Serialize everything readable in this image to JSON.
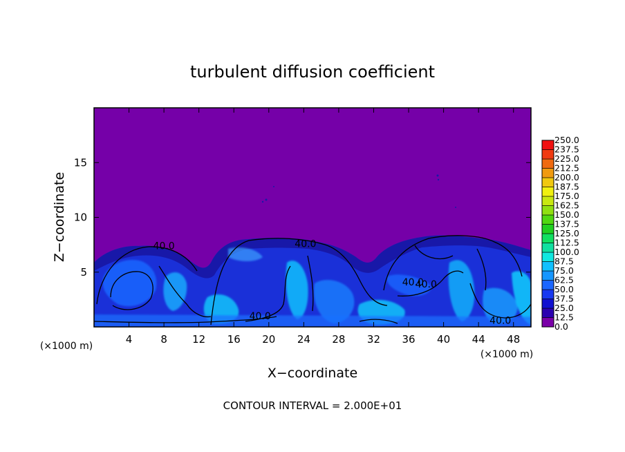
{
  "chart_data": {
    "type": "heatmap",
    "title": "turbulent diffusion coefficient",
    "xlabel": "X−coordinate",
    "ylabel": "Z−coordinate",
    "x_unit_left": "(×1000 m)",
    "x_unit_right": "(×1000 m)",
    "xlim": [
      0,
      50
    ],
    "ylim": [
      0,
      20
    ],
    "xticks": [
      4,
      8,
      12,
      16,
      20,
      24,
      28,
      32,
      36,
      40,
      44,
      48
    ],
    "yticks": [
      5,
      10,
      15
    ],
    "footer": "CONTOUR INTERVAL = 2.000E+01",
    "contour_interval": 20.0,
    "grid": false,
    "colorbar": {
      "placement": "right",
      "levels": [
        "0.0",
        "12.5",
        "25.0",
        "37.5",
        "50.0",
        "62.5",
        "75.0",
        "87.5",
        "100.0",
        "112.5",
        "125.0",
        "137.5",
        "150.0",
        "162.5",
        "175.0",
        "187.5",
        "200.0",
        "212.5",
        "225.0",
        "237.5",
        "250.0"
      ],
      "colors": [
        "#7a00a8",
        "#2a00b0",
        "#1010d0",
        "#1838f0",
        "#1a66ff",
        "#1696ff",
        "#10c0ff",
        "#10e8e0",
        "#10e0a0",
        "#10e060",
        "#20d020",
        "#50d810",
        "#90e010",
        "#c8e810",
        "#f0f010",
        "#f0c810",
        "#f09a10",
        "#f06a10",
        "#f03a10",
        "#f01010",
        "#f08080"
      ]
    },
    "contour_labels": [
      {
        "text": "40.0",
        "x": 8.0,
        "z": 7.4
      },
      {
        "text": "40.0",
        "x": 24.2,
        "z": 7.6
      },
      {
        "text": "40.0",
        "x": 19.0,
        "z": 1.0
      },
      {
        "text": "40.0",
        "x": 38.0,
        "z": 3.9
      },
      {
        "text": "40.0",
        "x": 46.5,
        "z": 0.6
      },
      {
        "text": "40.0",
        "x": 36.5,
        "z": 4.1
      }
    ],
    "field_description_colors": {
      "background": "#7500a8",
      "main": "#1a2ee0"
    }
  }
}
